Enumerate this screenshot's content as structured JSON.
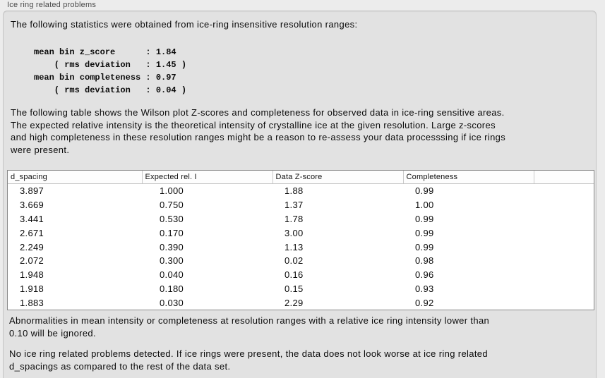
{
  "window": {
    "group_title": "Ice ring related problems"
  },
  "colors": {
    "page_bg": "#ececec",
    "panel_bg": "#e2e2e2",
    "panel_border": "#c6c6c6",
    "table_border": "#8a8a8a",
    "header_separator": "#c9c9c9",
    "text": "#0b0b0b",
    "label_text": "#494949"
  },
  "paragraphs": {
    "intro": "The following statistics were obtained from ice-ring insensitive resolution ranges:",
    "stats_block": "mean bin z_score      : 1.84\n    ( rms deviation   : 1.45 )\nmean bin completeness : 0.97\n    ( rms deviation   : 0.04 )",
    "table_intro": "The following table shows the Wilson plot Z-scores and completeness for observed data in ice-ring sensitive areas.\nThe expected relative intensity is the theoretical intensity of crystalline ice at the given resolution. Large z-scores\nand high completeness in these resolution ranges might be a reason to re-assess your data processsing if ice rings\nwere present.",
    "ignore_note": "Abnormalities in mean intensity or completeness at resolution ranges with a relative ice ring intensity lower than\n0.10 will be ignored.",
    "conclusion": "No ice ring related problems detected. If ice rings were present, the data does not look worse at ice ring related\nd_spacings as compared to the rest of the data set."
  },
  "table": {
    "columns": [
      "d_spacing",
      "Expected rel. I",
      "Data Z-score",
      "Completeness"
    ],
    "rows": [
      [
        "3.897",
        "1.000",
        "1.88",
        "0.99"
      ],
      [
        "3.669",
        "0.750",
        "1.37",
        "1.00"
      ],
      [
        "3.441",
        "0.530",
        "1.78",
        "0.99"
      ],
      [
        "2.671",
        "0.170",
        "3.00",
        "0.99"
      ],
      [
        "2.249",
        "0.390",
        "1.13",
        "0.99"
      ],
      [
        "2.072",
        "0.300",
        "0.02",
        "0.98"
      ],
      [
        "1.948",
        "0.040",
        "0.16",
        "0.96"
      ],
      [
        "1.918",
        "0.180",
        "0.15",
        "0.93"
      ],
      [
        "1.883",
        "0.030",
        "2.29",
        "0.92"
      ]
    ]
  }
}
